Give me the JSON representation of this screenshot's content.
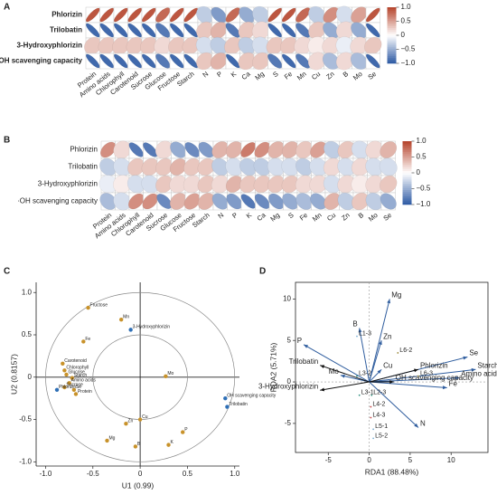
{
  "chart_data": [
    {
      "type": "correlation",
      "panel_label": "A",
      "rows": [
        "Phlorizin",
        "Trilobatin",
        "3-Hydroxyphlorizin",
        "·OH scavenging capacity"
      ],
      "categories": [
        "Protein",
        "Amino acids",
        "Chlorophyll",
        "Carotenoid",
        "Sucrose",
        "Glucose",
        "Fructose",
        "Starch",
        "N",
        "P",
        "K",
        "Ca",
        "Mg",
        "S",
        "Fe",
        "Mn",
        "Cu",
        "Zn",
        "B",
        "Mo",
        "Se"
      ],
      "values": [
        [
          0.9,
          0.9,
          0.9,
          0.9,
          0.9,
          0.8,
          0.9,
          0.9,
          -0.3,
          -0.6,
          0.8,
          -0.5,
          -0.3,
          0.9,
          0.9,
          0.8,
          -0.3,
          0.6,
          -0.2,
          0.5,
          0.9
        ],
        [
          -0.9,
          -0.9,
          -0.9,
          -0.9,
          -0.9,
          -0.8,
          -0.9,
          -0.9,
          0.3,
          0.4,
          -0.8,
          0.3,
          0.2,
          -0.9,
          -0.9,
          -0.8,
          0.3,
          -0.5,
          0.2,
          -0.5,
          -0.9
        ],
        [
          0.3,
          0.3,
          0.3,
          0.3,
          0.3,
          0.2,
          0.3,
          0.3,
          -0.2,
          -0.3,
          0.3,
          -0.3,
          -0.2,
          0.3,
          0.3,
          0.2,
          0.1,
          0.2,
          -0.1,
          0.2,
          0.3
        ],
        [
          -0.9,
          -0.9,
          -0.9,
          -0.9,
          -0.9,
          -0.8,
          -0.9,
          -0.9,
          0.3,
          0.4,
          -0.9,
          0.3,
          0.3,
          -0.8,
          -0.9,
          -0.8,
          0.2,
          -0.4,
          0.2,
          -0.4,
          -0.9
        ]
      ],
      "clim": [
        -1,
        1
      ],
      "colorbar_ticks": [
        {
          "value": 1.0,
          "label": "1.0"
        },
        {
          "value": 0.5,
          "label": "0.5"
        },
        0,
        {
          "value": -0.5,
          "label": "−0.5"
        },
        {
          "value": -1.0,
          "label": "−1.0"
        }
      ],
      "colors": [
        "#2b58a3",
        "#ffffff",
        "#b5432b"
      ]
    },
    {
      "type": "correlation",
      "panel_label": "B",
      "rows": [
        "Phlorizin",
        "Trilobatin",
        "3-Hydroxyphlorizin",
        "·OH scavenging capacity"
      ],
      "categories": [
        "Protein",
        "Amino acids",
        "Chlorophyll",
        "Carotenoid",
        "Sucrose",
        "Glucose",
        "Fructose",
        "Starch",
        "N",
        "P",
        "K",
        "Ca",
        "Mg",
        "S",
        "Fe",
        "Mn",
        "Cu",
        "Zn",
        "B",
        "Mo",
        "Se"
      ],
      "values": [
        [
          0.6,
          0.2,
          -0.8,
          -0.8,
          0.2,
          -0.5,
          -0.7,
          -0.6,
          0.4,
          0.4,
          0.7,
          0.6,
          0.4,
          0.4,
          0.3,
          0.5,
          -0.3,
          0.3,
          -0.2,
          0.2,
          0.4
        ],
        [
          -0.3,
          -0.2,
          0.3,
          0.3,
          0.3,
          0.4,
          0.3,
          0.3,
          -0.3,
          -0.2,
          -0.3,
          -0.3,
          -0.2,
          -0.2,
          -0.3,
          -0.2,
          0.2,
          -0.2,
          0.2,
          -0.2,
          -0.2
        ],
        [
          -0.1,
          0.1,
          -0.2,
          -0.2,
          0.3,
          0.2,
          0.2,
          0.3,
          0.2,
          0.4,
          0.3,
          0.3,
          0.3,
          0.3,
          0.2,
          0.2,
          -0.2,
          0.2,
          0.1,
          0.2,
          0.3
        ],
        [
          -0.4,
          -0.2,
          0.6,
          0.6,
          -0.7,
          0.4,
          0.5,
          0.4,
          -0.5,
          -0.6,
          -0.8,
          -0.7,
          -0.6,
          -0.5,
          -0.4,
          -0.5,
          0.4,
          -0.3,
          0.3,
          -0.3,
          -0.5
        ]
      ],
      "clim": [
        -1,
        1
      ],
      "colorbar_ticks": [
        {
          "value": 1.0,
          "label": "1.0"
        },
        {
          "value": 0.5,
          "label": "0.5"
        },
        0,
        {
          "value": -0.5,
          "label": "−0.5"
        },
        {
          "value": -1.0,
          "label": "−1.0"
        }
      ],
      "colors": [
        "#2b58a3",
        "#ffffff",
        "#b5432b"
      ]
    },
    {
      "type": "biplot",
      "panel_label": "C",
      "xlabel": "U1 (0.99)",
      "ylabel": "U2 (0.8157)",
      "xlim": [
        -1.1,
        1.05
      ],
      "ylim": [
        -1.05,
        1.12
      ],
      "xticks": [
        {
          "value": -1.0,
          "label": "-1.0"
        },
        -0.5,
        0,
        0.5,
        {
          "value": 1.0,
          "label": "1.0"
        }
      ],
      "yticks": [
        {
          "value": -1.0,
          "label": "-1.0"
        },
        -0.5,
        0,
        0.5,
        {
          "value": 1.0,
          "label": "1.0"
        }
      ],
      "circles": [
        0.5,
        1.0
      ],
      "groups": [
        {
          "color": "#c8922a",
          "points": [
            {
              "label": "Fructose",
              "x": -0.55,
              "y": 0.82
            },
            {
              "label": "Mn",
              "x": -0.2,
              "y": 0.68
            },
            {
              "label": "Fe",
              "x": -0.6,
              "y": 0.42
            },
            {
              "label": "Carotenoid",
              "x": -0.82,
              "y": 0.16
            },
            {
              "label": "Chlorophyll",
              "x": -0.8,
              "y": 0.08
            },
            {
              "label": "Glucose",
              "x": -0.78,
              "y": 0.03
            },
            {
              "label": "Starch",
              "x": -0.72,
              "y": -0.01
            },
            {
              "label": "Amino acids",
              "x": -0.75,
              "y": -0.07
            },
            {
              "label": "Sucrose",
              "x": -0.8,
              "y": -0.12
            },
            {
              "label": "Se",
              "x": -0.7,
              "y": -0.15
            },
            {
              "label": "Protein",
              "x": -0.68,
              "y": -0.2
            },
            {
              "label": "Mo",
              "x": 0.27,
              "y": 0.01
            },
            {
              "label": "Cu",
              "x": 0.0,
              "y": -0.5
            },
            {
              "label": "Zn",
              "x": -0.15,
              "y": -0.55
            },
            {
              "label": "Mg",
              "x": -0.35,
              "y": -0.75
            },
            {
              "label": "B",
              "x": -0.05,
              "y": -0.82
            },
            {
              "label": "P",
              "x": 0.45,
              "y": -0.65
            },
            {
              "label": "K",
              "x": 0.3,
              "y": -0.8
            }
          ]
        },
        {
          "color": "#2e6fb6",
          "points": [
            {
              "label": "3-Hydroxyphlorizin",
              "x": -0.1,
              "y": 0.56
            },
            {
              "label": "OH scavenging capacity",
              "x": 0.9,
              "y": -0.25
            },
            {
              "label": "Trilobatin",
              "x": 0.92,
              "y": -0.35
            },
            {
              "label": "Phlorizin",
              "x": -0.88,
              "y": -0.15
            }
          ]
        }
      ]
    },
    {
      "type": "biplot",
      "panel_label": "D",
      "xlabel": "RDA1 (88.48%)",
      "ylabel": "RDA2 (5.71%)",
      "xlim": [
        -9,
        14.5
      ],
      "ylim": [
        -8.5,
        12
      ],
      "xticks": [
        -5,
        0,
        5,
        10
      ],
      "yticks": [
        -5,
        0,
        5,
        10
      ],
      "groups": [
        {
          "color": "#2f5d9e",
          "arrows": true,
          "points": [
            {
              "label": "Mg",
              "x": 2.5,
              "y": 10
            },
            {
              "label": "B",
              "x": -1.2,
              "y": 6.5
            },
            {
              "label": "P",
              "x": -8,
              "y": 4.5
            },
            {
              "label": "Zn",
              "x": 1.5,
              "y": 5
            },
            {
              "label": "Mo",
              "x": -3.5,
              "y": 0.8
            },
            {
              "label": "Cu",
              "x": 1.5,
              "y": 1.5
            },
            {
              "label": "Se",
              "x": 12,
              "y": 3
            },
            {
              "label": "Starch",
              "x": 13,
              "y": 1.5
            },
            {
              "label": "Amino acids",
              "x": 11,
              "y": 0.5
            },
            {
              "label": "Fe",
              "x": 9.5,
              "y": -0.7
            },
            {
              "label": "N",
              "x": 6,
              "y": -5.5
            }
          ]
        },
        {
          "color": "#111111",
          "arrows": true,
          "points": [
            {
              "label": "Trilobatin",
              "x": -6,
              "y": 2
            },
            {
              "label": "3-Hydroxyphlorizin",
              "x": -6,
              "y": -1
            },
            {
              "label": "Phlorizin",
              "x": 6,
              "y": 1.5
            },
            {
              "label": "OH scavenging capacity",
              "x": 3,
              "y": 0
            }
          ]
        },
        {
          "color": "#2a8c7a",
          "points": [
            {
              "label": "L3-1",
              "x": -1.2,
              "y": -1.6
            },
            {
              "label": "L2-3",
              "x": 0.3,
              "y": -1.6
            },
            {
              "label": "L3-2",
              "x": -1.5,
              "y": 0.7
            }
          ]
        },
        {
          "color": "#c43c3c",
          "points": [
            {
              "label": "L4-2",
              "x": 0.2,
              "y": -3
            },
            {
              "label": "L4-3",
              "x": 0.2,
              "y": -4.3
            }
          ]
        },
        {
          "color": "#7fb1d6",
          "points": [
            {
              "label": "L5-1",
              "x": 0.5,
              "y": -5.7
            },
            {
              "label": "L5-2",
              "x": 0.5,
              "y": -6.8
            },
            {
              "label": "L1-3",
              "x": -1.5,
              "y": 5.5
            }
          ]
        },
        {
          "color": "#9a8a3a",
          "points": [
            {
              "label": "L6-2",
              "x": 3.5,
              "y": 3.5
            },
            {
              "label": "L6-3",
              "x": 6,
              "y": 0.7
            }
          ]
        }
      ]
    }
  ]
}
